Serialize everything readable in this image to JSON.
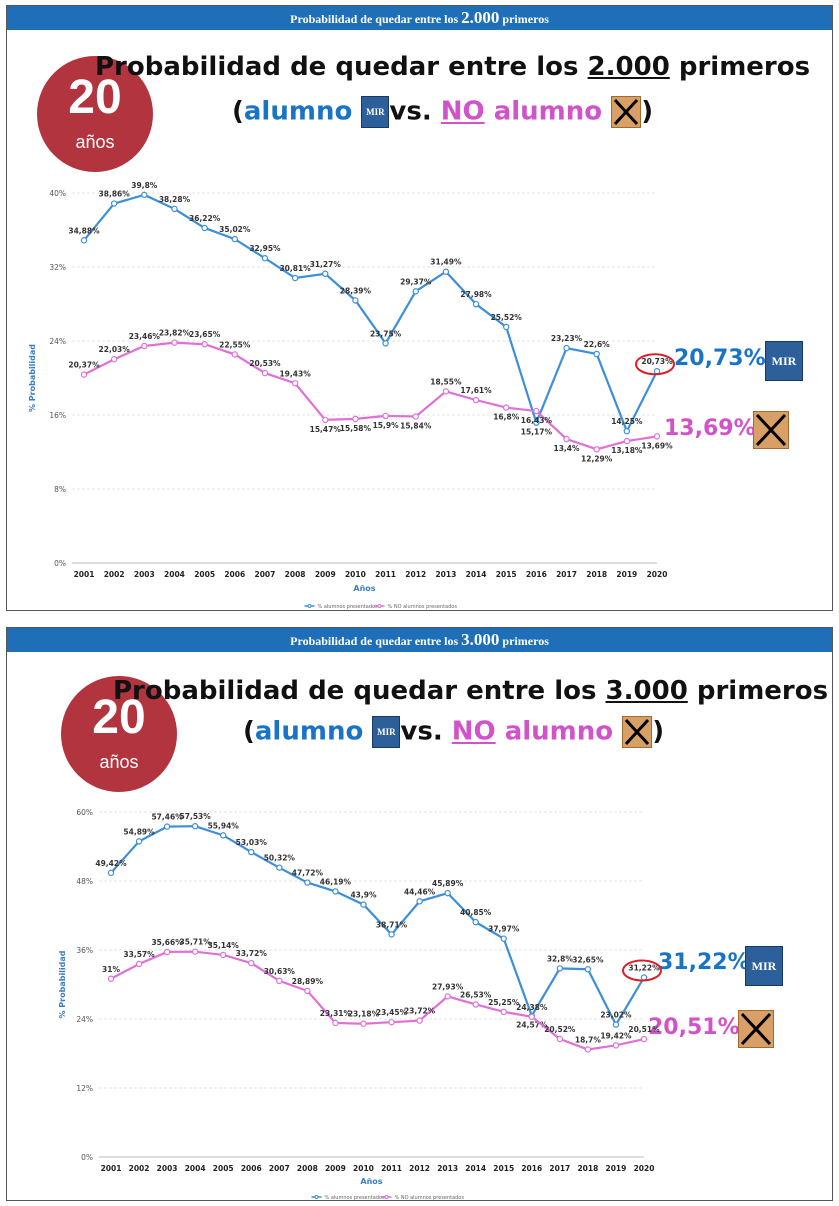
{
  "colors": {
    "banner": "#1f6fb8",
    "badge": "#b2343f",
    "student": "#3c8fd8",
    "non_student": "#e070d8",
    "highlight": "#d8202a"
  },
  "panels": [
    {
      "banner_prefix": "Probabilidad de quedar entre los",
      "banner_number": "2.000",
      "banner_suffix": "primeros",
      "badge_number": "20",
      "badge_unit": "años",
      "heading_line1_prefix": "Probabilidad de quedar entre los",
      "heading_line1_number": "2.000",
      "heading_line1_suffix": "primeros",
      "heading_open": "(",
      "heading_student": "alumno",
      "heading_vs": "vs.",
      "heading_no": "NO",
      "heading_non_student": "alumno",
      "heading_close": ")",
      "logo_text": "MIR",
      "callout_student": "20,73%",
      "callout_non_student": "13,69%"
    },
    {
      "banner_prefix": "Probabilidad de quedar entre los",
      "banner_number": "3.000",
      "banner_suffix": "primeros",
      "badge_number": "20",
      "badge_unit": "años",
      "heading_line1_prefix": "Probabilidad de quedar entre los",
      "heading_line1_number": "3.000",
      "heading_line1_suffix": "primeros",
      "heading_open": "(",
      "heading_student": "alumno",
      "heading_vs": "vs.",
      "heading_no": "NO",
      "heading_non_student": "alumno",
      "heading_close": ")",
      "logo_text": "MIR",
      "callout_student": "31,22%",
      "callout_non_student": "20,51%"
    }
  ],
  "chart_data": [
    {
      "type": "line",
      "xlabel": "Años",
      "ylabel": "% Probabilidad",
      "ylim": [
        0,
        40
      ],
      "yticks": [
        "0%",
        "8%",
        "16%",
        "24%",
        "32%",
        "40%"
      ],
      "categories": [
        "2001",
        "2002",
        "2003",
        "2004",
        "2005",
        "2006",
        "2007",
        "2008",
        "2009",
        "2010",
        "2011",
        "2012",
        "2013",
        "2014",
        "2015",
        "2016",
        "2017",
        "2018",
        "2019",
        "2020"
      ],
      "grid": true,
      "legend_position": "bottom",
      "series": [
        {
          "name": "% alumnos presentados",
          "color": "#3c8fd8",
          "values": [
            34.88,
            38.86,
            39.8,
            38.28,
            36.22,
            35.02,
            32.95,
            30.81,
            31.27,
            28.39,
            23.75,
            29.37,
            31.49,
            27.98,
            25.52,
            15.17,
            23.23,
            22.6,
            14.25,
            20.73
          ],
          "labels": [
            "34,88%",
            "38,86%",
            "39,8%",
            "38,28%",
            "36,22%",
            "35,02%",
            "32,95%",
            "30,81%",
            "31,27%",
            "28,39%",
            "23,75%",
            "29,37%",
            "31,49%",
            "27,98%",
            "25,52%",
            "15,17%",
            "23,23%",
            "22,6%",
            "14,25%",
            "20,73%"
          ]
        },
        {
          "name": "% NO alumnos presentados",
          "color": "#e070d8",
          "values": [
            20.37,
            22.03,
            23.46,
            23.82,
            23.65,
            22.55,
            20.53,
            19.43,
            15.47,
            15.58,
            15.9,
            15.84,
            18.55,
            17.61,
            16.8,
            16.43,
            13.4,
            12.29,
            13.18,
            13.69
          ],
          "labels": [
            "20,37%",
            "22,03%",
            "23,46%",
            "23,82%",
            "23,65%",
            "22,55%",
            "20,53%",
            "19,43%",
            "15,47%",
            "15,58%",
            "15,9%",
            "15,84%",
            "18,55%",
            "17,61%",
            "16,8%",
            "16,43%",
            "13,4%",
            "12,29%",
            "13,18%",
            "13,69%"
          ]
        }
      ]
    },
    {
      "type": "line",
      "xlabel": "Años",
      "ylabel": "% Probabilidad",
      "ylim": [
        0,
        60
      ],
      "yticks": [
        "0%",
        "12%",
        "24%",
        "36%",
        "48%",
        "60%"
      ],
      "categories": [
        "2001",
        "2002",
        "2003",
        "2004",
        "2005",
        "2006",
        "2007",
        "2008",
        "2009",
        "2010",
        "2011",
        "2012",
        "2013",
        "2014",
        "2015",
        "2016",
        "2017",
        "2018",
        "2019",
        "2020"
      ],
      "grid": true,
      "legend_position": "bottom",
      "series": [
        {
          "name": "% alumnos presentados",
          "color": "#3c8fd8",
          "values": [
            49.42,
            54.89,
            57.46,
            57.53,
            55.94,
            53.03,
            50.32,
            47.72,
            46.19,
            43.9,
            38.71,
            44.46,
            45.89,
            40.85,
            37.97,
            24.57,
            32.8,
            32.65,
            23.02,
            31.22
          ],
          "labels": [
            "49,42%",
            "54,89%",
            "57,46%",
            "57,53%",
            "55,94%",
            "53,03%",
            "50,32%",
            "47,72%",
            "46,19%",
            "43,9%",
            "38,71%",
            "44,46%",
            "45,89%",
            "40,85%",
            "37,97%",
            "24,57%",
            "32,8%",
            "32,65%",
            "23,02%",
            "31,22%"
          ]
        },
        {
          "name": "% NO alumnos presentados",
          "color": "#e070d8",
          "values": [
            31,
            33.57,
            35.66,
            35.71,
            35.14,
            33.72,
            30.63,
            28.89,
            23.31,
            23.18,
            23.45,
            23.72,
            27.93,
            26.53,
            25.25,
            24.38,
            20.52,
            18.7,
            19.42,
            20.51
          ],
          "labels": [
            "31%",
            "33,57%",
            "35,66%",
            "35,71%",
            "35,14%",
            "33,72%",
            "30,63%",
            "28,89%",
            "23,31%",
            "23,18%",
            "23,45%",
            "23,72%",
            "27,93%",
            "26,53%",
            "25,25%",
            "24,38%",
            "20,52%",
            "18,7%",
            "19,42%",
            "20,51%"
          ]
        }
      ]
    }
  ]
}
